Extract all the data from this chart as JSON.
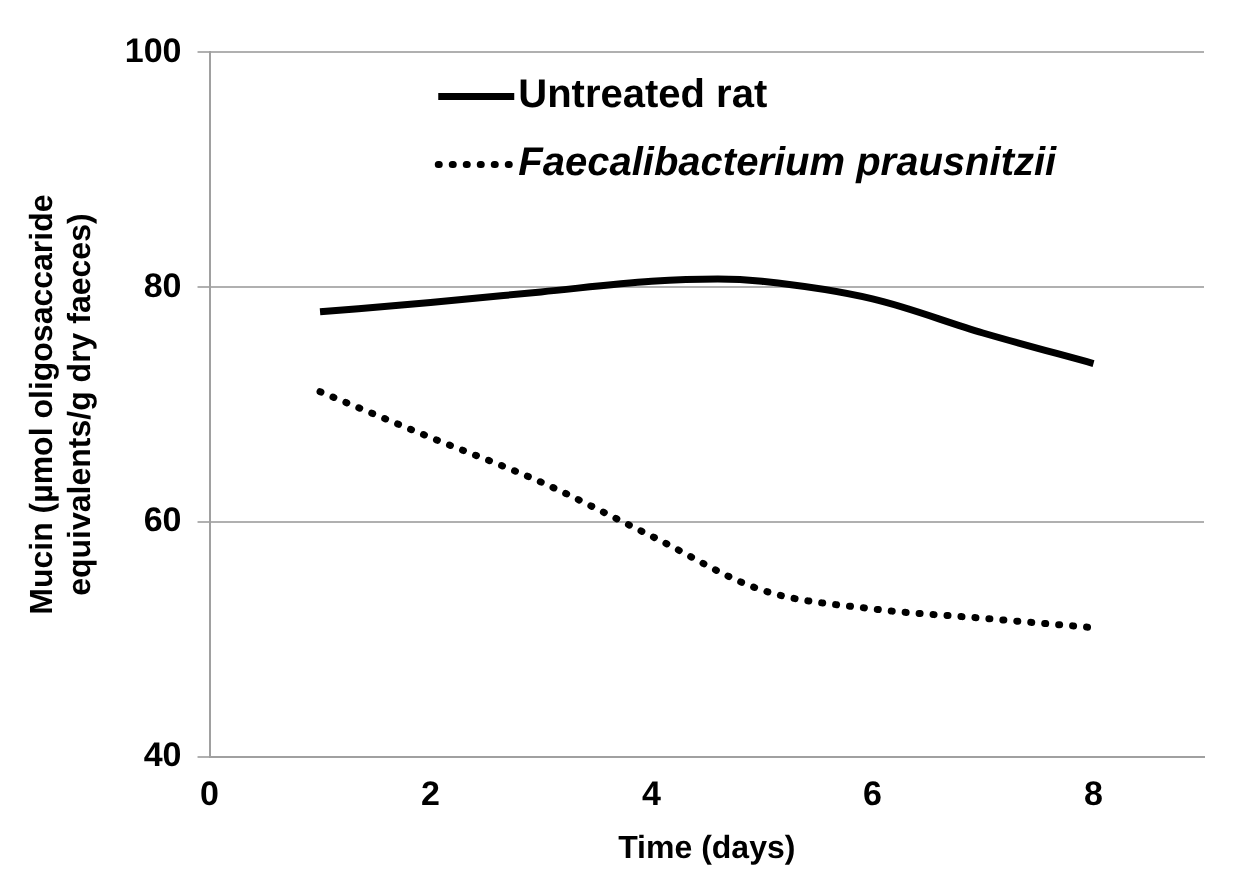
{
  "chart_data": {
    "type": "line",
    "xlabel": "Time (days)",
    "ylabel": "Mucin (µmol oligosaccaride equivalents/g dry faeces)",
    "xlim": [
      0,
      9
    ],
    "xticks": [
      0,
      2,
      4,
      6,
      8
    ],
    "ylim": [
      40,
      100
    ],
    "yticks": [
      40,
      60,
      80,
      100
    ],
    "grid": "y",
    "legend": "top",
    "marker": "none",
    "series": [
      {
        "name": "Untreated rat",
        "color": "#000000",
        "line_style": "solid",
        "x": [
          1,
          2,
          3,
          4,
          4.6,
          5,
          6,
          7,
          8
        ],
        "values": [
          77.9,
          78.7,
          79.6,
          80.5,
          80.7,
          80.5,
          79.0,
          76.1,
          73.5
        ]
      },
      {
        "name": "Faecalibacterium prausnitzii",
        "color": "#000000",
        "line_style": "dotted",
        "x": [
          1,
          2,
          3,
          4,
          5,
          6,
          7,
          8
        ],
        "values": [
          71.1,
          67.2,
          63.4,
          58.8,
          54.2,
          52.6,
          51.8,
          51.0
        ]
      }
    ]
  }
}
